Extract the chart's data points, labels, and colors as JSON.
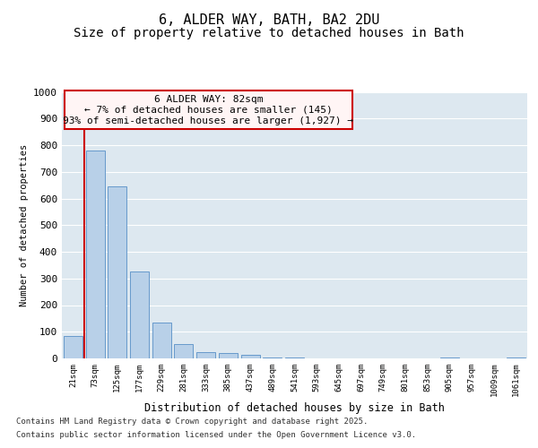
{
  "title_line1": "6, ALDER WAY, BATH, BA2 2DU",
  "title_line2": "Size of property relative to detached houses in Bath",
  "xlabel": "Distribution of detached houses by size in Bath",
  "ylabel": "Number of detached properties",
  "categories": [
    "21sqm",
    "73sqm",
    "125sqm",
    "177sqm",
    "229sqm",
    "281sqm",
    "333sqm",
    "385sqm",
    "437sqm",
    "489sqm",
    "541sqm",
    "593sqm",
    "645sqm",
    "697sqm",
    "749sqm",
    "801sqm",
    "853sqm",
    "905sqm",
    "957sqm",
    "1009sqm",
    "1061sqm"
  ],
  "values": [
    85,
    780,
    645,
    325,
    135,
    55,
    25,
    20,
    15,
    2,
    2,
    1,
    1,
    1,
    1,
    1,
    1,
    5,
    1,
    1,
    5
  ],
  "bar_color": "#b8d0e8",
  "bar_edge_color": "#6699cc",
  "background_color": "#dde8f0",
  "ylim": [
    0,
    1000
  ],
  "yticks": [
    0,
    100,
    200,
    300,
    400,
    500,
    600,
    700,
    800,
    900,
    1000
  ],
  "annotation_title": "6 ALDER WAY: 82sqm",
  "annotation_line1": "← 7% of detached houses are smaller (145)",
  "annotation_line2": "93% of semi-detached houses are larger (1,927) →",
  "vline_x_bar_index": 1,
  "footnote_line1": "Contains HM Land Registry data © Crown copyright and database right 2025.",
  "footnote_line2": "Contains public sector information licensed under the Open Government Licence v3.0.",
  "title_fontsize": 11,
  "subtitle_fontsize": 10,
  "grid_color": "#ffffff",
  "ann_box_facecolor": "#fff5f5",
  "ann_box_edgecolor": "#cc0000",
  "vline_color": "#cc0000"
}
